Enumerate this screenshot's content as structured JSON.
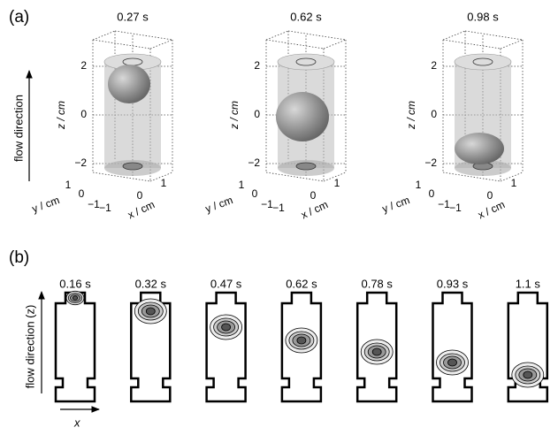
{
  "panel_a": {
    "label": "(a)",
    "flow_label": "flow direction",
    "views": [
      {
        "time": "0.27 s",
        "z_label": "z / cm",
        "y_label": "y / cm",
        "x_label": "x / cm",
        "z_ticks": [
          "2",
          "0",
          "−2"
        ],
        "y_ticks": [
          "1",
          "0",
          "−1"
        ],
        "x_ticks": [
          "−1",
          "0",
          "1"
        ]
      },
      {
        "time": "0.62 s",
        "z_label": "z / cm",
        "y_label": "y / cm",
        "x_label": "x / cm",
        "z_ticks": [
          "2",
          "0",
          "−2"
        ],
        "y_ticks": [
          "1",
          "0",
          "−1"
        ],
        "x_ticks": [
          "−1",
          "0",
          "1"
        ]
      },
      {
        "time": "0.98 s",
        "z_label": "z / cm",
        "y_label": "y / cm",
        "x_label": "x / cm",
        "z_ticks": [
          "2",
          "0",
          "−2"
        ],
        "y_ticks": [
          "1",
          "0",
          "−1"
        ],
        "x_ticks": [
          "−1",
          "0",
          "1"
        ]
      }
    ]
  },
  "panel_b": {
    "label": "(b)",
    "flow_label": "flow direction (z)",
    "x_label": "x",
    "times": [
      "0.16 s",
      "0.32 s",
      "0.47 s",
      "0.62 s",
      "0.78 s",
      "0.93 s",
      "1.1 s"
    ]
  }
}
